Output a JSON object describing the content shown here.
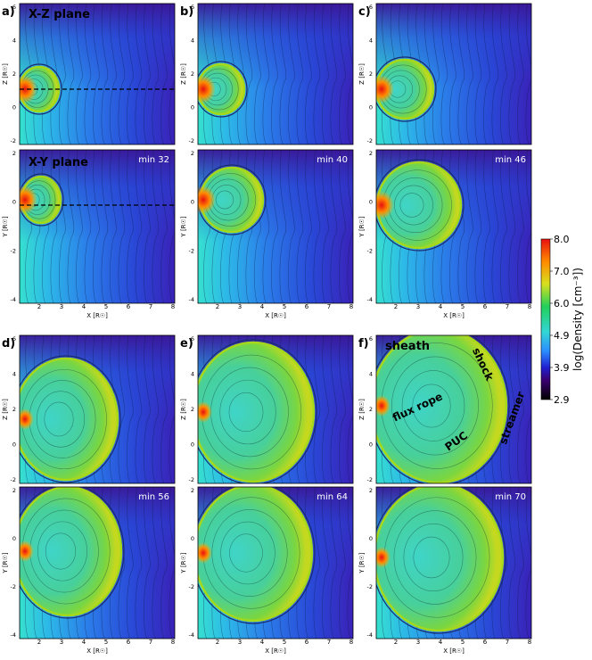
{
  "panels": [
    {
      "id": "a",
      "label": "a)",
      "title_xz": "X-Z plane",
      "title_xy": "X-Y plane",
      "time": "min 32",
      "dashed": true,
      "annotations": []
    },
    {
      "id": "b",
      "label": "b)",
      "title_xz": "",
      "title_xy": "",
      "time": "min 40",
      "dashed": false,
      "annotations": []
    },
    {
      "id": "c",
      "label": "c)",
      "title_xz": "",
      "title_xy": "",
      "time": "min 46",
      "dashed": false,
      "annotations": []
    },
    {
      "id": "d",
      "label": "d)",
      "title_xz": "",
      "title_xy": "",
      "time": "min 56",
      "dashed": false,
      "annotations": []
    },
    {
      "id": "e",
      "label": "e)",
      "title_xz": "",
      "title_xy": "",
      "time": "min 64",
      "dashed": false,
      "annotations": []
    },
    {
      "id": "f",
      "label": "f)",
      "title_xz": "sheath",
      "title_xy": "",
      "time": "min 70",
      "dashed": false,
      "annotations": [
        {
          "text": "flux rope",
          "rotate": -25
        },
        {
          "text": "shock",
          "rotate": 65
        },
        {
          "text": "streamer",
          "rotate": -70
        },
        {
          "text": "PUC",
          "rotate": -35
        }
      ]
    }
  ],
  "chart_data": {
    "type": "heatmap",
    "quantity": "log(Density [cm⁻³])",
    "colorbar": {
      "label": "log(Density [cm⁻³])",
      "ticks": [
        "8.0",
        "7.0",
        "6.0",
        "4.9",
        "3.9",
        "2.9"
      ],
      "min": 2.9,
      "max": 8.0,
      "colors": [
        "#000000",
        "#3a0070",
        "#2020d0",
        "#2b8cff",
        "#33d6d6",
        "#22d05a",
        "#d8e020",
        "#ff8a00",
        "#e81010"
      ]
    },
    "xz_plane": {
      "xlabel": "X [R☉]",
      "ylabel": "Z [R☉]",
      "xlim": [
        1,
        8
      ],
      "ylim": [
        -2.5,
        6
      ],
      "xticks": [
        "2",
        "3",
        "4",
        "5",
        "6",
        "7",
        "8"
      ],
      "yticks": [
        "6",
        "4",
        "2",
        "0",
        "-2"
      ]
    },
    "xy_plane": {
      "xlabel": "X [R☉]",
      "ylabel": "Y [R☉]",
      "xlim": [
        1,
        8
      ],
      "ylim": [
        -5.5,
        2.5
      ],
      "xticks": [
        "2",
        "3",
        "4",
        "5",
        "6",
        "7",
        "8"
      ],
      "yticks": [
        "2",
        "0",
        "-2",
        "-4"
      ]
    },
    "times_min": [
      32,
      40,
      46,
      56,
      64,
      70
    ]
  }
}
